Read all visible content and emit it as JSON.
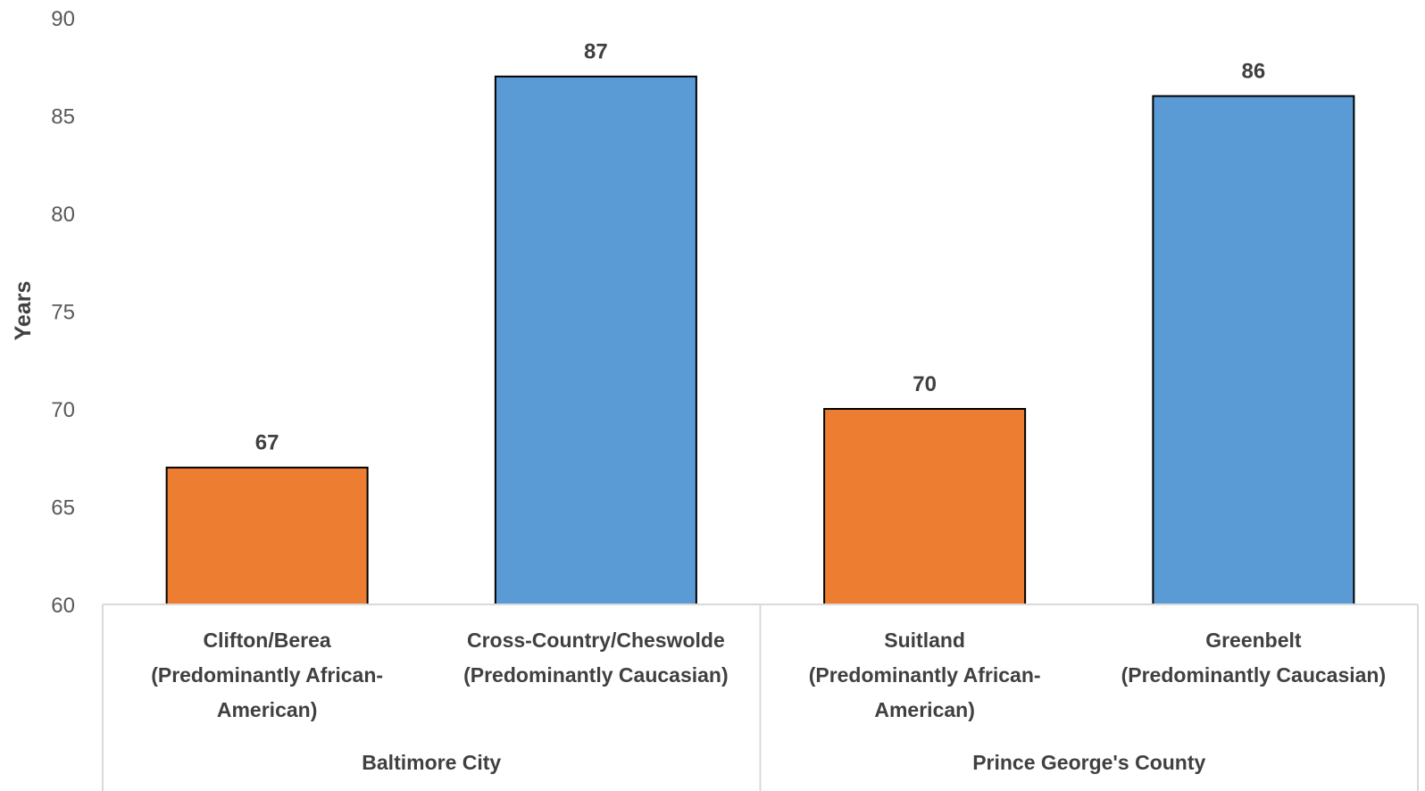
{
  "chart_data": {
    "type": "bar",
    "ylabel": "Years",
    "ylim": [
      60,
      90
    ],
    "yticks": [
      60,
      65,
      70,
      75,
      80,
      85,
      90
    ],
    "categories": [
      {
        "lines": [
          "Clifton/Berea",
          "(Predominantly African-",
          "American)"
        ],
        "group": 0,
        "color": "#ED7D31"
      },
      {
        "lines": [
          "Cross-Country/Cheswolde",
          "(Predominantly Caucasian)"
        ],
        "group": 0,
        "color": "#5B9BD5"
      },
      {
        "lines": [
          "Suitland",
          "(Predominantly African-",
          "American)"
        ],
        "group": 1,
        "color": "#ED7D31"
      },
      {
        "lines": [
          "Greenbelt",
          "(Predominantly Caucasian)"
        ],
        "group": 1,
        "color": "#5B9BD5"
      }
    ],
    "values": [
      67,
      87,
      70,
      86
    ],
    "groups": [
      "Baltimore City",
      "Prince George's County"
    ],
    "data_labels": true,
    "legend": "none",
    "grid": false
  }
}
